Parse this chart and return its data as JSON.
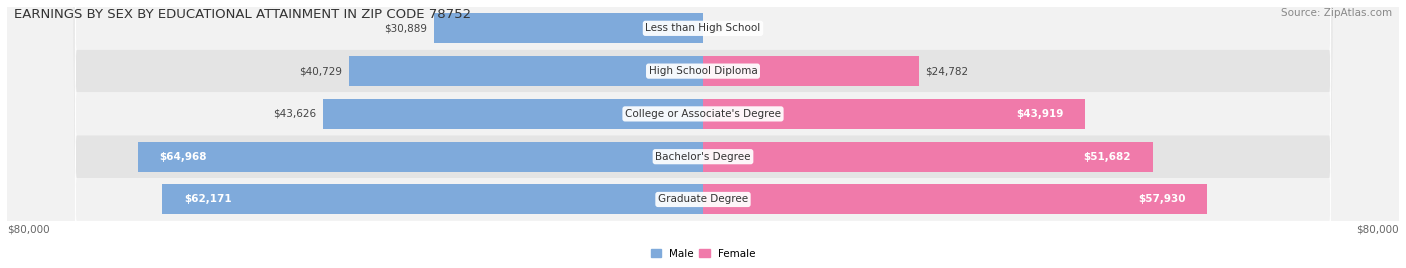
{
  "title": "EARNINGS BY SEX BY EDUCATIONAL ATTAINMENT IN ZIP CODE 78752",
  "source": "Source: ZipAtlas.com",
  "categories": [
    "Less than High School",
    "High School Diploma",
    "College or Associate's Degree",
    "Bachelor's Degree",
    "Graduate Degree"
  ],
  "male_values": [
    30889,
    40729,
    43626,
    64968,
    62171
  ],
  "female_values": [
    0,
    24782,
    43919,
    51682,
    57930
  ],
  "max_value": 80000,
  "male_color": "#7faadb",
  "female_color": "#f07aaa",
  "male_label": "Male",
  "female_label": "Female",
  "row_bg_colors": [
    "#f2f2f2",
    "#e4e4e4"
  ],
  "axis_label_left": "$80,000",
  "axis_label_right": "$80,000",
  "title_fontsize": 9.5,
  "source_fontsize": 7.5,
  "label_fontsize": 7.5,
  "bar_label_fontsize": 7.5,
  "category_fontsize": 7.5,
  "male_inside_threshold": 50000,
  "female_inside_threshold": 40000
}
